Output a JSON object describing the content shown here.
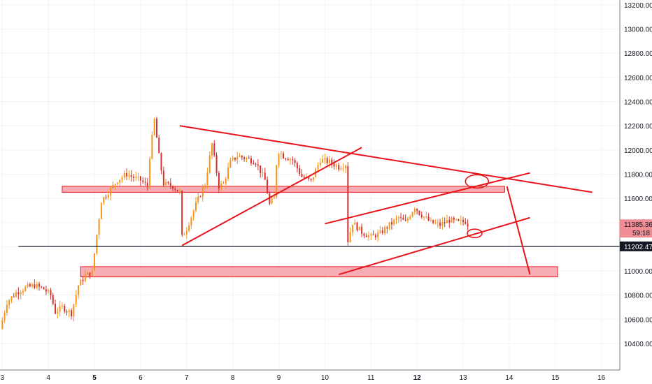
{
  "colors": {
    "up": "#f7931a",
    "down": "#d32f2f",
    "annotation": "#e8141b",
    "zone_fill": "#f5a0a7",
    "zone_stroke": "#e8141b",
    "horizontal_line": "#131722",
    "last_price_bg": "#f08c94",
    "level_bg": "#131722",
    "grid": "#f0f3fa",
    "axis_text": "#131722"
  },
  "chart_data": {
    "type": "candlestick",
    "x_ticks": [
      "3",
      "4",
      "5",
      "6",
      "7",
      "8",
      "9",
      "10",
      "11",
      "12",
      "13",
      "14",
      "15",
      "16"
    ],
    "x_tick_values": [
      3,
      4,
      5,
      6,
      7,
      8,
      9,
      10,
      11,
      12,
      13,
      14,
      15,
      16
    ],
    "bold_x_ticks": [
      "5",
      "12"
    ],
    "xlim": [
      2.95,
      16.4
    ],
    "y_ticks": [
      "10400.00",
      "10600.00",
      "10800.00",
      "11000.00",
      "11200.00",
      "11400.00",
      "11600.00",
      "11800.00",
      "12000.00",
      "12200.00",
      "12400.00",
      "12600.00",
      "12800.00",
      "13000.00",
      "13200.00"
    ],
    "y_tick_values": [
      10400,
      10600,
      10800,
      11000,
      11200,
      11400,
      11600,
      11800,
      12000,
      12200,
      12400,
      12600,
      12800,
      13000,
      13200
    ],
    "ylim": [
      10180,
      13240
    ],
    "grid": true,
    "last_price_label": "11385.36",
    "countdown_label": "59:18",
    "last_price_value": 11385.36,
    "level_label": "11202.47",
    "level_value": 11202.47,
    "price_path": [
      [
        2.95,
        10520
      ],
      [
        3.1,
        10740
      ],
      [
        3.3,
        10820
      ],
      [
        3.5,
        10860
      ],
      [
        3.7,
        10880
      ],
      [
        3.9,
        10850
      ],
      [
        4.05,
        10800
      ],
      [
        4.15,
        10660
      ],
      [
        4.3,
        10700
      ],
      [
        4.5,
        10650
      ],
      [
        4.65,
        10880
      ],
      [
        4.8,
        10960
      ],
      [
        4.95,
        10990
      ],
      [
        5.05,
        11300
      ],
      [
        5.15,
        11580
      ],
      [
        5.3,
        11650
      ],
      [
        5.5,
        11750
      ],
      [
        5.7,
        11800
      ],
      [
        5.8,
        11780
      ],
      [
        6.0,
        11750
      ],
      [
        6.15,
        11700
      ],
      [
        6.2,
        11950
      ],
      [
        6.3,
        12250
      ],
      [
        6.4,
        11950
      ],
      [
        6.5,
        11720
      ],
      [
        6.7,
        11700
      ],
      [
        6.85,
        11650
      ],
      [
        6.9,
        11280
      ],
      [
        7.0,
        11350
      ],
      [
        7.2,
        11550
      ],
      [
        7.4,
        11720
      ],
      [
        7.55,
        12050
      ],
      [
        7.7,
        11700
      ],
      [
        7.8,
        11720
      ],
      [
        7.95,
        11900
      ],
      [
        8.1,
        11950
      ],
      [
        8.3,
        11930
      ],
      [
        8.5,
        11900
      ],
      [
        8.7,
        11750
      ],
      [
        8.8,
        11550
      ],
      [
        8.9,
        11600
      ],
      [
        8.97,
        12000
      ],
      [
        9.1,
        11950
      ],
      [
        9.3,
        11920
      ],
      [
        9.5,
        11780
      ],
      [
        9.7,
        11740
      ],
      [
        9.9,
        11920
      ],
      [
        10.1,
        11900
      ],
      [
        10.3,
        11860
      ],
      [
        10.45,
        11880
      ],
      [
        10.5,
        11250
      ],
      [
        10.6,
        11400
      ],
      [
        10.8,
        11320
      ],
      [
        11.0,
        11280
      ],
      [
        11.2,
        11310
      ],
      [
        11.4,
        11380
      ],
      [
        11.6,
        11440
      ],
      [
        11.75,
        11400
      ],
      [
        11.95,
        11530
      ],
      [
        12.05,
        11480
      ],
      [
        12.3,
        11400
      ],
      [
        12.5,
        11380
      ],
      [
        12.7,
        11420
      ],
      [
        12.9,
        11400
      ],
      [
        13.05,
        11410
      ],
      [
        13.1,
        11385.36
      ]
    ],
    "zones": [
      {
        "x0": 4.3,
        "x1": 13.9,
        "y0": 11650,
        "y1": 11700
      },
      {
        "x0": 4.7,
        "x1": 15.05,
        "y0": 10950,
        "y1": 11035
      }
    ],
    "trendlines": [
      {
        "from": [
          6.85,
          12200
        ],
        "to": [
          15.8,
          11650
        ]
      },
      {
        "from": [
          6.9,
          11210
        ],
        "to": [
          10.8,
          12020
        ]
      },
      {
        "from": [
          10.0,
          11390
        ],
        "to": [
          14.45,
          11810
        ]
      },
      {
        "from": [
          10.3,
          10970
        ],
        "to": [
          14.45,
          11440
        ]
      },
      {
        "from": [
          13.95,
          11700
        ],
        "to": [
          14.45,
          10970
        ]
      }
    ],
    "circles": [
      {
        "cx": 13.3,
        "cy": 11740,
        "rx": 0.25,
        "ry": 55
      },
      {
        "cx": 13.25,
        "cy": 11310,
        "rx": 0.16,
        "ry": 35
      }
    ]
  }
}
